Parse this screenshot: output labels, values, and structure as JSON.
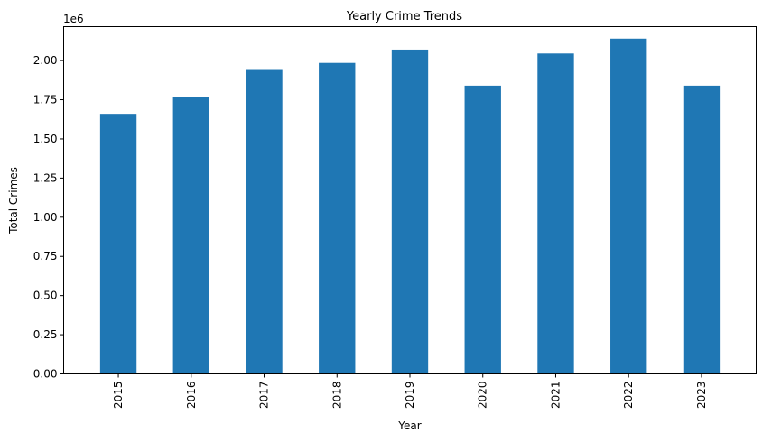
{
  "chart_data": {
    "type": "bar",
    "title": "Yearly Crime Trends",
    "xlabel": "Year",
    "ylabel": "Total Crimes",
    "offset_label": "1e6",
    "categories": [
      "2015",
      "2016",
      "2017",
      "2018",
      "2019",
      "2020",
      "2021",
      "2022",
      "2023"
    ],
    "values": [
      1.66,
      1.765,
      1.94,
      1.985,
      2.07,
      1.84,
      2.045,
      2.14,
      1.84
    ],
    "ylim": [
      0,
      2.2165
    ],
    "yticks": [
      "0.00",
      "0.25",
      "0.50",
      "0.75",
      "1.00",
      "1.25",
      "1.50",
      "1.75",
      "2.00"
    ],
    "bar_color": "#1f77b4",
    "grid": false,
    "legend": false
  }
}
